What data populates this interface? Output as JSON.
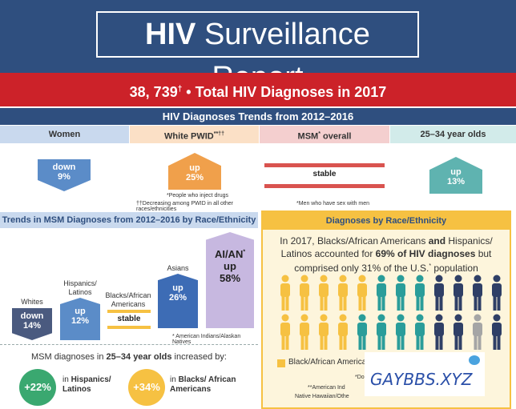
{
  "header": {
    "title_bold": "HIV",
    "title_rest": " Surveillance Report"
  },
  "banner": {
    "number": "38, 739",
    "dagger": "†",
    "text": " • Total HIV Diagnoses in 2017"
  },
  "trends_title": "HIV Diagnoses Trends from 2012–2016",
  "columns": [
    {
      "head": "Women",
      "direction": "down",
      "value": "9%",
      "color": "#5b8cc8"
    },
    {
      "head": "White PWID",
      "head_mark": "**††",
      "direction": "up",
      "value": "25%",
      "color": "#f0a04b",
      "notes": [
        "*People who inject drugs",
        "††Decreasing among PWID in all other races/ethnicities"
      ]
    },
    {
      "head": "MSM",
      "head_mark": "*",
      "head_rest": " overall",
      "direction": "stable",
      "value": "",
      "color": "#d9534f",
      "notes": [
        "*Men who have sex with men"
      ]
    },
    {
      "head": "25–34 year olds",
      "direction": "up",
      "value": "13%",
      "color": "#5fb3b0"
    }
  ],
  "msm_section": {
    "title": "Trends in MSM Diagnoses from 2012–2016 by Race/Ethnicity",
    "groups": [
      {
        "label": "Whites",
        "direction": "down",
        "value": "14%",
        "color": "#4a5a7f"
      },
      {
        "label": "Hispanics/ Latinos",
        "direction": "up",
        "value": "12%",
        "color": "#5b8cc8"
      },
      {
        "label": "Blacks/African Americans",
        "direction": "stable",
        "value": "",
        "color": "#f6c142"
      },
      {
        "label": "Asians",
        "direction": "up",
        "value": "26%",
        "color": "#3d6cb5"
      },
      {
        "label": "AI/AN",
        "label_mark": "*",
        "direction": "up",
        "value": "58%",
        "color": "#c7b8e0"
      }
    ],
    "footnote": "* American Indians/Alaskan Natives",
    "age_text_pre": "MSM diagnoses in ",
    "age_text_bold": "25–34 year olds",
    "age_text_post": " increased by:",
    "stats": [
      {
        "value": "+22%",
        "pre": "in ",
        "bold": "Hispanics/ Latinos",
        "color": "#3aa870"
      },
      {
        "value": "+34%",
        "pre": "in ",
        "bold": "Blacks/ African Americans",
        "color": "#f6c142"
      }
    ]
  },
  "race_section": {
    "title": "Diagnoses by Race/Ethnicity",
    "text_1": "In 2017, Blacks/African Americans ",
    "text_and": "and",
    "text_2": " Hispanics/ Latinos accounted for ",
    "text_bold": "69% of HIV diagnoses",
    "text_3": " but comprised only 31% of the U.S.",
    "text_mark": "*",
    "text_4": " population",
    "legend_label": "Black/African American",
    "footnote_1": "*Do",
    "footnote_2": "**American Ind",
    "footnote_3": "Native Hawaiian/Othe"
  },
  "watermark": "GAYBBS.XYZ",
  "colors": {
    "navy": "#2f4f7f",
    "red": "#cc2229",
    "yellow": "#f6c142",
    "teal": "#2a9d9a",
    "navy_person": "#2f3f66",
    "gray": "#a5a5a5"
  }
}
